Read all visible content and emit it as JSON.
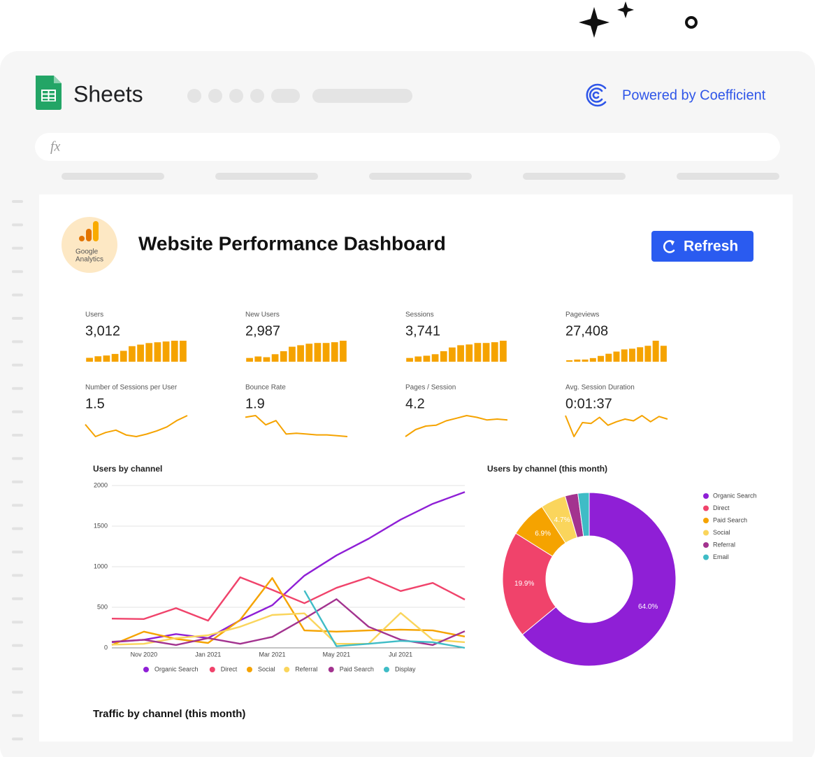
{
  "app": "Sheets",
  "powered_by": "Powered by Coefficient",
  "formula_bar": "fx",
  "dashboard": {
    "logo_lines": [
      "Google",
      "Analytics"
    ],
    "title": "Website Performance Dashboard",
    "refresh": "Refresh"
  },
  "kpis": [
    {
      "label": "Users",
      "value": "3,012",
      "spark_type": "bar",
      "spark": [
        5,
        7,
        8,
        10,
        14,
        20,
        22,
        24,
        25,
        26,
        27,
        27
      ]
    },
    {
      "label": "New Users",
      "value": "2,987",
      "spark_type": "bar",
      "spark": [
        5,
        7,
        6,
        10,
        14,
        20,
        22,
        24,
        25,
        25,
        26,
        28
      ]
    },
    {
      "label": "Sessions",
      "value": "3,741",
      "spark_type": "bar",
      "spark": [
        5,
        7,
        8,
        10,
        14,
        19,
        22,
        23,
        25,
        25,
        26,
        28
      ]
    },
    {
      "label": "Pageviews",
      "value": "27,408",
      "spark_type": "bar",
      "spark": [
        2,
        3,
        3,
        5,
        8,
        11,
        14,
        17,
        18,
        20,
        22,
        29,
        22
      ]
    },
    {
      "label": "Number of Sessions per User",
      "value": "1.5",
      "spark_type": "line",
      "spark": [
        20,
        5,
        10,
        13,
        7,
        5,
        8,
        12,
        17,
        25,
        31
      ]
    },
    {
      "label": "Bounce Rate",
      "value": "1.9",
      "spark_type": "line",
      "spark": [
        28,
        30,
        19,
        24,
        8,
        9,
        8,
        7,
        7,
        6,
        5
      ]
    },
    {
      "label": "Pages / Session",
      "value": "4.2",
      "spark_type": "line",
      "spark": [
        5,
        13,
        17,
        18,
        23,
        26,
        29,
        27,
        24,
        25,
        24
      ]
    },
    {
      "label": "Avg. Session Duration",
      "value": "0:01:37",
      "spark_type": "line",
      "spark": [
        29,
        5,
        21,
        20,
        27,
        18,
        22,
        25,
        23,
        29,
        22,
        28,
        25
      ]
    }
  ],
  "chart_data": [
    {
      "type": "line",
      "title": "Users by channel",
      "categories": [
        null,
        "Nov 2020",
        null,
        "Jan 2021",
        null,
        "Mar 2021",
        null,
        "May 2021",
        null,
        "Jul 2021",
        null,
        null
      ],
      "ylim": [
        0,
        2000
      ],
      "yticks": [
        0,
        500,
        1000,
        1500,
        2000
      ],
      "grid": true,
      "legend": "bottom",
      "series": [
        {
          "name": "Organic Search",
          "color": "#8f1fd6",
          "values": [
            70,
            100,
            170,
            120,
            340,
            525,
            890,
            1140,
            1345,
            1580,
            1775,
            1920
          ]
        },
        {
          "name": "Direct",
          "color": "#f0436b",
          "values": [
            360,
            355,
            490,
            335,
            870,
            715,
            550,
            740,
            870,
            700,
            800,
            595
          ]
        },
        {
          "name": "Social",
          "color": "#f5a300",
          "values": [
            35,
            200,
            110,
            60,
            345,
            860,
            215,
            200,
            215,
            225,
            215,
            140
          ]
        },
        {
          "name": "Referral",
          "color": "#fad55c",
          "values": [
            40,
            50,
            120,
            155,
            260,
            405,
            425,
            50,
            50,
            430,
            100,
            70
          ]
        },
        {
          "name": "Paid Search",
          "color": "#a3338f",
          "values": [
            75,
            100,
            35,
            120,
            50,
            135,
            360,
            600,
            260,
            100,
            35,
            205
          ]
        },
        {
          "name": "Display",
          "color": "#3fbcc6",
          "values": [
            null,
            null,
            null,
            null,
            null,
            null,
            705,
            20,
            50,
            85,
            70,
            0
          ]
        }
      ]
    },
    {
      "type": "pie",
      "title": "Users by channel (this month)",
      "categories": [
        "Organic Search",
        "Direct",
        "Paid Search",
        "Social",
        "Referral",
        "Email"
      ],
      "values": [
        64.0,
        19.9,
        6.9,
        4.7,
        2.4,
        2.1
      ],
      "value_labels": [
        "64.0%",
        "19.9%",
        "6.9%",
        "4.7%",
        null,
        null
      ],
      "colors": [
        "#8f1fd6",
        "#f0436b",
        "#f5a300",
        "#fad55c",
        "#a3338f",
        "#3fbcc6"
      ],
      "donut": true,
      "legend": "right"
    }
  ],
  "section_title": "Traffic by channel (this month)"
}
